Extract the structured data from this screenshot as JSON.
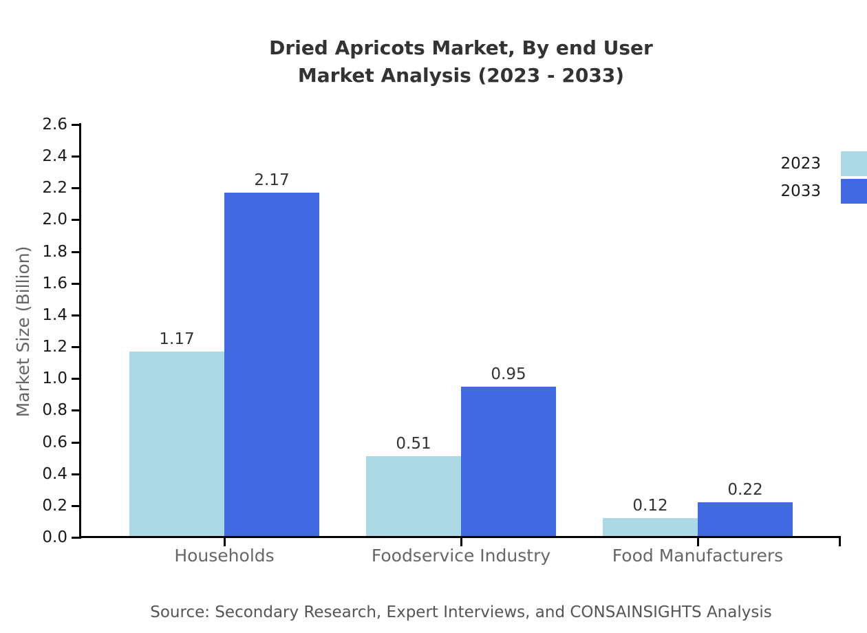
{
  "chart": {
    "title_line1": "Dried Apricots Market, By end User",
    "title_line2": "Market Analysis (2023 - 2033)",
    "source": "Source: Secondary Research, Expert Interviews, and CONSAINSIGHTS Analysis"
  },
  "chart_data": {
    "type": "bar",
    "title": "Dried Apricots Market, By end User Market Analysis (2023 - 2033)",
    "categories": [
      "Households",
      "Foodservice Industry",
      "Food Manufacturers"
    ],
    "series": [
      {
        "name": "2023",
        "color": "#ADD8E6",
        "values": [
          1.17,
          0.51,
          0.12
        ]
      },
      {
        "name": "2033",
        "color": "#4169E1",
        "values": [
          2.17,
          0.95,
          0.22
        ]
      }
    ],
    "xlabel": "",
    "ylabel": "Market Size (Billion)",
    "ylim": [
      0.0,
      2.6
    ],
    "ytick_step": 0.2,
    "yticks": [
      "0.0",
      "0.2",
      "0.4",
      "0.6",
      "0.8",
      "1.0",
      "1.2",
      "1.4",
      "1.6",
      "1.8",
      "2.0",
      "2.2",
      "2.4",
      "2.6"
    ],
    "grid": false,
    "legend_position": "upper right",
    "value_labels": true,
    "axis_color": "#000000",
    "value_label_color": "#333333",
    "category_label_color": "#666666"
  }
}
